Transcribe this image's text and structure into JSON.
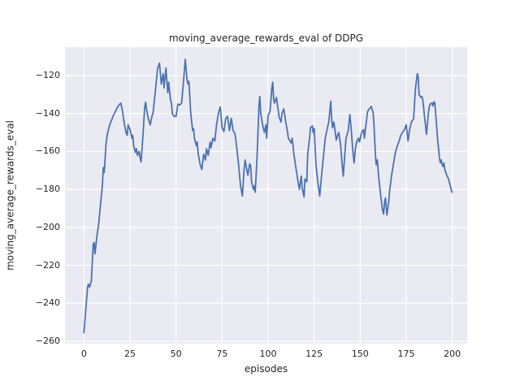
{
  "chart_data": {
    "type": "line",
    "title": "moving_average_rewards_eval of DDPG",
    "xlabel": "episodes",
    "ylabel": "moving_average_rewards_eval",
    "x_tick_labels": [
      "0",
      "25",
      "50",
      "75",
      "100",
      "125",
      "150",
      "175",
      "200"
    ],
    "x_ticks": [
      0,
      25,
      50,
      75,
      100,
      125,
      150,
      175,
      200
    ],
    "y_tick_labels": [
      "−120",
      "−140",
      "−160",
      "−180",
      "−200",
      "−220",
      "−240",
      "−260"
    ],
    "y_ticks": [
      -120,
      -140,
      -160,
      -180,
      -200,
      -220,
      -240,
      -260
    ],
    "xlim": [
      -10.3,
      208.1
    ],
    "ylim": [
      -261.3,
      -105
    ],
    "grid": true,
    "legend_position": "none",
    "colors": {
      "line": "#4c72b0",
      "axes_background": "#eaeaf2",
      "gridline": "#ffffff",
      "figure_background": "#ffffff",
      "text": "#262626"
    },
    "series": [
      {
        "name": "moving_average_rewards_eval",
        "points": [
          [
            0,
            -255.5
          ],
          [
            1,
            -243
          ],
          [
            2,
            -231
          ],
          [
            2.5,
            -230
          ],
          [
            3,
            -231.5
          ],
          [
            4,
            -228.5
          ],
          [
            5,
            -209
          ],
          [
            5.5,
            -208
          ],
          [
            6,
            -214
          ],
          [
            7,
            -205
          ],
          [
            8,
            -198
          ],
          [
            9,
            -188
          ],
          [
            10,
            -178
          ],
          [
            10.5,
            -168.5
          ],
          [
            11,
            -171
          ],
          [
            12,
            -156
          ],
          [
            12.5,
            -152
          ],
          [
            13,
            -149.5
          ],
          [
            14,
            -146
          ],
          [
            15,
            -143.5
          ],
          [
            16,
            -141
          ],
          [
            17,
            -139
          ],
          [
            18,
            -137
          ],
          [
            19,
            -135.5
          ],
          [
            20,
            -134.5
          ],
          [
            21,
            -139
          ],
          [
            22,
            -146
          ],
          [
            23,
            -150.5
          ],
          [
            23.5,
            -151.5
          ],
          [
            24,
            -146
          ],
          [
            25,
            -148.5
          ],
          [
            26,
            -153
          ],
          [
            26.5,
            -151.5
          ],
          [
            27,
            -157
          ],
          [
            28,
            -160.5
          ],
          [
            28.5,
            -158.5
          ],
          [
            29,
            -162
          ],
          [
            30,
            -160
          ],
          [
            30.5,
            -163.5
          ],
          [
            31,
            -165.5
          ],
          [
            32,
            -152
          ],
          [
            33,
            -136.5
          ],
          [
            33.5,
            -134
          ],
          [
            34,
            -138
          ],
          [
            35,
            -143
          ],
          [
            36,
            -146
          ],
          [
            37,
            -141
          ],
          [
            37.5,
            -140
          ],
          [
            38,
            -135
          ],
          [
            39,
            -126
          ],
          [
            40,
            -116
          ],
          [
            41,
            -113.5
          ],
          [
            42,
            -124.5
          ],
          [
            43,
            -119
          ],
          [
            43.5,
            -126.5
          ],
          [
            44.5,
            -116
          ],
          [
            45.5,
            -129
          ],
          [
            46,
            -123.5
          ],
          [
            47,
            -133
          ],
          [
            47.5,
            -134.5
          ],
          [
            48,
            -140
          ],
          [
            49,
            -141.5
          ],
          [
            50,
            -141.5
          ],
          [
            51,
            -135
          ],
          [
            52,
            -135.5
          ],
          [
            53,
            -134.5
          ],
          [
            54,
            -124
          ],
          [
            55,
            -111.5
          ],
          [
            56,
            -122.5
          ],
          [
            56.5,
            -124.5
          ],
          [
            57,
            -123
          ],
          [
            58,
            -140
          ],
          [
            59,
            -149
          ],
          [
            59.5,
            -148
          ],
          [
            60,
            -153
          ],
          [
            61,
            -157
          ],
          [
            61.5,
            -155
          ],
          [
            62,
            -161
          ],
          [
            63,
            -166.5
          ],
          [
            64,
            -169.5
          ],
          [
            65,
            -161.5
          ],
          [
            66,
            -164.5
          ],
          [
            66.5,
            -158.5
          ],
          [
            67.5,
            -162
          ],
          [
            68.5,
            -155
          ],
          [
            69,
            -158
          ],
          [
            70,
            -153
          ],
          [
            71,
            -154.5
          ],
          [
            72,
            -146
          ],
          [
            73,
            -140
          ],
          [
            74,
            -136.5
          ],
          [
            75,
            -147.5
          ],
          [
            76,
            -149.5
          ],
          [
            77,
            -142.5
          ],
          [
            78,
            -141.5
          ],
          [
            79,
            -149
          ],
          [
            80,
            -142.5
          ],
          [
            81,
            -149
          ],
          [
            82,
            -150.5
          ],
          [
            83,
            -158.5
          ],
          [
            84,
            -167
          ],
          [
            85,
            -178
          ],
          [
            86,
            -183.5
          ],
          [
            87,
            -169
          ],
          [
            87.5,
            -164.5
          ],
          [
            88.5,
            -170
          ],
          [
            89,
            -172.5
          ],
          [
            90,
            -166.5
          ],
          [
            90.5,
            -167.5
          ],
          [
            91,
            -176
          ],
          [
            92,
            -180
          ],
          [
            92.5,
            -178
          ],
          [
            93,
            -181.5
          ],
          [
            94,
            -163
          ],
          [
            95,
            -136
          ],
          [
            95.5,
            -131
          ],
          [
            96,
            -140
          ],
          [
            97,
            -146
          ],
          [
            98,
            -150
          ],
          [
            98.8,
            -146
          ],
          [
            99.2,
            -153
          ],
          [
            100,
            -141
          ],
          [
            101,
            -139
          ],
          [
            102,
            -127
          ],
          [
            102.5,
            -123.5
          ],
          [
            103,
            -132.5
          ],
          [
            103.5,
            -134.5
          ],
          [
            104.5,
            -131.5
          ],
          [
            106,
            -142
          ],
          [
            107,
            -144.5
          ],
          [
            107.5,
            -140
          ],
          [
            108.5,
            -137.5
          ],
          [
            109.5,
            -144
          ],
          [
            110.5,
            -149.5
          ],
          [
            111,
            -153
          ],
          [
            112.5,
            -155.5
          ],
          [
            113,
            -153
          ],
          [
            113.5,
            -156.5
          ],
          [
            114,
            -161.5
          ],
          [
            115,
            -168
          ],
          [
            116,
            -174.5
          ],
          [
            117,
            -180
          ],
          [
            118,
            -173
          ],
          [
            118.5,
            -179
          ],
          [
            119.5,
            -184
          ],
          [
            120,
            -174.5
          ],
          [
            121,
            -176
          ],
          [
            121.5,
            -161.5
          ],
          [
            122.5,
            -153
          ],
          [
            123,
            -147.5
          ],
          [
            124,
            -146.5
          ],
          [
            124.5,
            -150
          ],
          [
            125,
            -148
          ],
          [
            126,
            -167
          ],
          [
            127,
            -176
          ],
          [
            128,
            -183.5
          ],
          [
            129,
            -173
          ],
          [
            130,
            -163
          ],
          [
            131,
            -153
          ],
          [
            132,
            -148.5
          ],
          [
            133,
            -144
          ],
          [
            134,
            -133.5
          ],
          [
            134.5,
            -143
          ],
          [
            135,
            -147.5
          ],
          [
            135.7,
            -144.5
          ],
          [
            137,
            -154
          ],
          [
            137.9,
            -151
          ],
          [
            138.4,
            -150
          ],
          [
            139.4,
            -157
          ],
          [
            140.1,
            -166
          ],
          [
            140.8,
            -173
          ],
          [
            141.6,
            -162
          ],
          [
            142.3,
            -153
          ],
          [
            143.5,
            -149
          ],
          [
            144.4,
            -140.5
          ],
          [
            145.2,
            -149
          ],
          [
            146,
            -160
          ],
          [
            146.7,
            -166
          ],
          [
            147.4,
            -158.5
          ],
          [
            148.2,
            -154.5
          ],
          [
            149,
            -153
          ],
          [
            149.6,
            -155
          ],
          [
            150.4,
            -151.5
          ],
          [
            151,
            -149.5
          ],
          [
            151.8,
            -148.5
          ],
          [
            152.3,
            -153
          ],
          [
            153.3,
            -144.5
          ],
          [
            154,
            -139
          ],
          [
            155,
            -137.5
          ],
          [
            156,
            -136.3
          ],
          [
            157,
            -139.5
          ],
          [
            157.5,
            -146
          ],
          [
            158.3,
            -162
          ],
          [
            158.7,
            -167
          ],
          [
            159.3,
            -164.5
          ],
          [
            160,
            -173
          ],
          [
            161,
            -182
          ],
          [
            162,
            -190
          ],
          [
            162.7,
            -193
          ],
          [
            163.3,
            -186
          ],
          [
            163.7,
            -184.5
          ],
          [
            164.5,
            -193.5
          ],
          [
            165.5,
            -186.5
          ],
          [
            166,
            -180.5
          ],
          [
            167,
            -173
          ],
          [
            168,
            -167
          ],
          [
            169,
            -161
          ],
          [
            170,
            -157.5
          ],
          [
            171,
            -155
          ],
          [
            172,
            -151.5
          ],
          [
            173,
            -150
          ],
          [
            174,
            -148.5
          ],
          [
            175,
            -146
          ],
          [
            176,
            -154.5
          ],
          [
            177,
            -147.5
          ],
          [
            178,
            -144
          ],
          [
            179,
            -143
          ],
          [
            180,
            -127
          ],
          [
            181,
            -119
          ],
          [
            181.5,
            -120.5
          ],
          [
            182,
            -130
          ],
          [
            183,
            -131.5
          ],
          [
            183.5,
            -131
          ],
          [
            184,
            -133
          ],
          [
            185,
            -142
          ],
          [
            186,
            -151
          ],
          [
            187,
            -140
          ],
          [
            187.5,
            -136.5
          ],
          [
            188,
            -135
          ],
          [
            189,
            -134.5
          ],
          [
            189.5,
            -136
          ],
          [
            190,
            -133.8
          ],
          [
            190.5,
            -134.5
          ],
          [
            191,
            -140
          ],
          [
            192,
            -153
          ],
          [
            193,
            -163
          ],
          [
            193.5,
            -166
          ],
          [
            194,
            -164.5
          ],
          [
            194.5,
            -167
          ],
          [
            195,
            -168
          ],
          [
            195.5,
            -166
          ],
          [
            196,
            -170
          ],
          [
            196.5,
            -171
          ],
          [
            197,
            -172.5
          ],
          [
            198,
            -174.5
          ],
          [
            199,
            -178.5
          ],
          [
            199.5,
            -180.5
          ],
          [
            200,
            -181.5
          ]
        ]
      }
    ]
  }
}
